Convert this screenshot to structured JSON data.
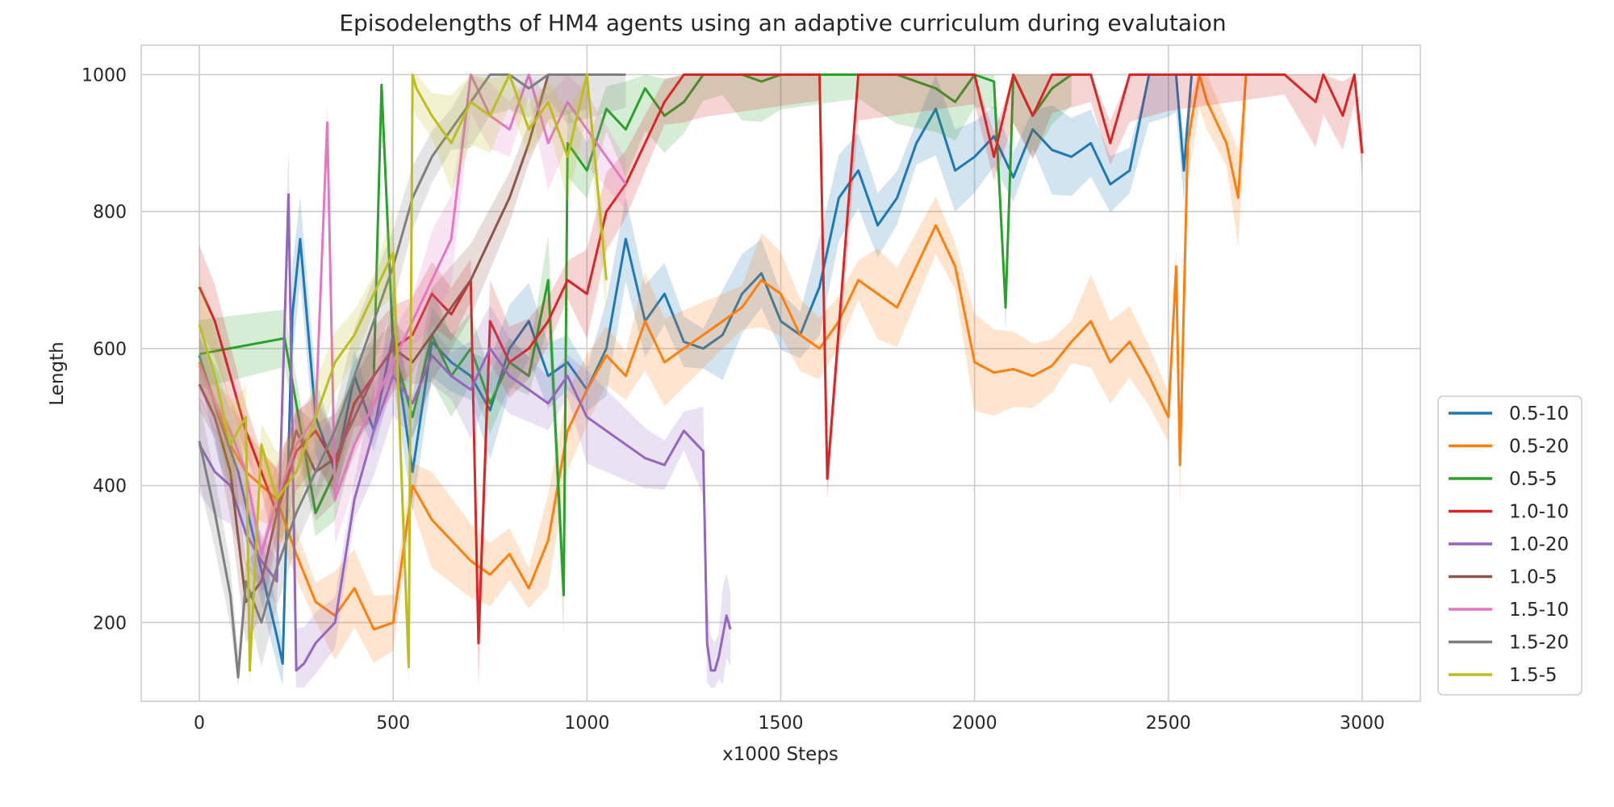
{
  "chart_data": {
    "type": "line",
    "title": "Episodelengths of HM4 agents using an adaptive curriculum during evalutaion",
    "xlabel": "x1000 Steps",
    "ylabel": "Length",
    "xlim": [
      -150,
      3150
    ],
    "ylim": [
      85,
      1043
    ],
    "xticks": [
      0,
      500,
      1000,
      1500,
      2000,
      2500,
      3000
    ],
    "yticks": [
      200,
      400,
      600,
      800,
      1000
    ],
    "grid": true,
    "legend_position": "lower-right-outside",
    "series": [
      {
        "name": "0.5-10",
        "color": "#1f77b4",
        "x": [
          0,
          50,
          100,
          150,
          200,
          215,
          240,
          260,
          300,
          350,
          400,
          450,
          500,
          550,
          600,
          650,
          700,
          750,
          800,
          850,
          900,
          950,
          1000,
          1050,
          1100,
          1150,
          1200,
          1250,
          1300,
          1350,
          1400,
          1450,
          1500,
          1550,
          1600,
          1650,
          1700,
          1750,
          1800,
          1850,
          1900,
          1950,
          2000,
          2050,
          2100,
          2150,
          2200,
          2250,
          2300,
          2350,
          2400,
          2450,
          2500,
          2520,
          2540,
          2560
        ],
        "y": [
          590,
          500,
          420,
          300,
          180,
          140,
          650,
          760,
          500,
          420,
          560,
          480,
          620,
          420,
          610,
          580,
          560,
          510,
          600,
          640,
          560,
          580,
          540,
          600,
          760,
          640,
          680,
          610,
          600,
          620,
          680,
          710,
          640,
          620,
          690,
          820,
          860,
          780,
          820,
          900,
          950,
          860,
          880,
          910,
          850,
          920,
          890,
          880,
          900,
          840,
          860,
          1000,
          1000,
          1000,
          860,
          1000
        ]
      },
      {
        "name": "0.5-20",
        "color": "#ff7f0e",
        "x": [
          0,
          40,
          80,
          120,
          160,
          200,
          250,
          300,
          350,
          400,
          450,
          500,
          550,
          600,
          650,
          700,
          750,
          800,
          850,
          900,
          950,
          1000,
          1050,
          1100,
          1150,
          1200,
          1250,
          1300,
          1350,
          1400,
          1450,
          1500,
          1550,
          1600,
          1650,
          1700,
          1750,
          1800,
          1850,
          1900,
          1950,
          2000,
          2050,
          2100,
          2150,
          2200,
          2250,
          2300,
          2350,
          2400,
          2450,
          2500,
          2520,
          2530,
          2550,
          2580,
          2600,
          2650,
          2680,
          2700
        ],
        "y": [
          580,
          520,
          460,
          420,
          400,
          380,
          300,
          230,
          210,
          250,
          190,
          200,
          400,
          350,
          320,
          290,
          270,
          300,
          250,
          320,
          480,
          540,
          590,
          560,
          640,
          580,
          600,
          620,
          640,
          660,
          700,
          680,
          620,
          600,
          640,
          700,
          680,
          660,
          720,
          780,
          720,
          580,
          565,
          570,
          560,
          575,
          610,
          640,
          580,
          610,
          560,
          500,
          720,
          430,
          900,
          1000,
          960,
          900,
          820,
          1000
        ]
      },
      {
        "name": "0.5-5",
        "color": "#2ca02c",
        "x": [
          0,
          220,
          300,
          350,
          400,
          450,
          470,
          500,
          550,
          600,
          650,
          700,
          750,
          800,
          850,
          900,
          940,
          950,
          1000,
          1050,
          1100,
          1150,
          1200,
          1250,
          1300,
          1350,
          1400,
          1450,
          1500,
          1600,
          1700,
          1800,
          1900,
          1950,
          2000,
          2050,
          2080,
          2100,
          2150,
          2200,
          2250
        ],
        "y": [
          592,
          615,
          360,
          420,
          520,
          560,
          985,
          600,
          500,
          620,
          560,
          600,
          520,
          580,
          560,
          700,
          240,
          900,
          860,
          950,
          920,
          980,
          940,
          960,
          1000,
          1000,
          1000,
          990,
          1000,
          1000,
          1000,
          1000,
          980,
          960,
          1000,
          990,
          660,
          1000,
          940,
          980,
          1000
        ]
      },
      {
        "name": "1.0-10",
        "color": "#d62728",
        "x": [
          0,
          40,
          80,
          120,
          160,
          200,
          250,
          300,
          350,
          400,
          450,
          500,
          550,
          600,
          650,
          700,
          720,
          750,
          800,
          850,
          900,
          950,
          1000,
          1050,
          1100,
          1150,
          1200,
          1250,
          1300,
          1400,
          1500,
          1600,
          1620,
          1700,
          1800,
          1900,
          2000,
          2050,
          2100,
          2150,
          2200,
          2250,
          2300,
          2350,
          2400,
          2450,
          2500,
          2600,
          2700,
          2800,
          2880,
          2900,
          2950,
          2980,
          3000
        ],
        "y": [
          690,
          640,
          560,
          480,
          420,
          360,
          450,
          480,
          430,
          520,
          560,
          600,
          620,
          680,
          650,
          700,
          170,
          640,
          580,
          600,
          640,
          700,
          680,
          800,
          840,
          900,
          960,
          1000,
          1000,
          1000,
          1000,
          1000,
          410,
          1000,
          1000,
          1000,
          1000,
          880,
          1000,
          940,
          1000,
          1000,
          1000,
          900,
          1000,
          1000,
          1000,
          1000,
          1000,
          1000,
          960,
          1000,
          940,
          1000,
          885
        ]
      },
      {
        "name": "1.0-20",
        "color": "#9467bd",
        "x": [
          0,
          40,
          80,
          120,
          160,
          200,
          230,
          250,
          270,
          300,
          350,
          400,
          450,
          500,
          550,
          600,
          650,
          700,
          750,
          800,
          850,
          900,
          950,
          1000,
          1050,
          1100,
          1150,
          1200,
          1250,
          1300,
          1310,
          1320,
          1330,
          1340,
          1350,
          1360,
          1370
        ],
        "y": [
          460,
          420,
          400,
          330,
          290,
          260,
          825,
          130,
          140,
          170,
          200,
          380,
          480,
          560,
          520,
          590,
          560,
          540,
          600,
          560,
          540,
          520,
          560,
          500,
          480,
          460,
          440,
          430,
          480,
          450,
          170,
          130,
          130,
          150,
          180,
          210,
          190
        ]
      },
      {
        "name": "1.0-5",
        "color": "#8c564b",
        "x": [
          0,
          40,
          80,
          120,
          160,
          200,
          250,
          300,
          350,
          400,
          450,
          500,
          550,
          600,
          650,
          700,
          750,
          800,
          850,
          900,
          950,
          1000
        ],
        "y": [
          548,
          500,
          420,
          230,
          260,
          360,
          480,
          420,
          440,
          500,
          560,
          600,
          580,
          620,
          660,
          700,
          760,
          820,
          900,
          1000,
          1000,
          1000
        ]
      },
      {
        "name": "1.5-10",
        "color": "#e377c2",
        "x": [
          0,
          40,
          80,
          120,
          160,
          200,
          250,
          300,
          330,
          350,
          400,
          450,
          500,
          550,
          600,
          650,
          700,
          750,
          800,
          850,
          900,
          950,
          1000,
          1050,
          1100
        ],
        "y": [
          575,
          520,
          480,
          420,
          300,
          380,
          460,
          500,
          930,
          380,
          460,
          520,
          580,
          640,
          700,
          760,
          1000,
          940,
          920,
          1000,
          900,
          960,
          920,
          880,
          840
        ]
      },
      {
        "name": "1.5-20",
        "color": "#7f7f7f",
        "x": [
          0,
          40,
          80,
          100,
          120,
          160,
          200,
          250,
          300,
          350,
          400,
          450,
          500,
          550,
          600,
          650,
          700,
          750,
          800,
          850,
          900,
          950,
          1000,
          1050,
          1100
        ],
        "y": [
          465,
          360,
          240,
          120,
          260,
          200,
          280,
          360,
          420,
          480,
          560,
          640,
          720,
          820,
          880,
          920,
          960,
          1000,
          1000,
          980,
          1000,
          1000,
          1000,
          1000,
          1000
        ]
      },
      {
        "name": "1.5-5",
        "color": "#bcbd22",
        "x": [
          0,
          40,
          80,
          120,
          130,
          160,
          200,
          250,
          300,
          350,
          400,
          450,
          500,
          540,
          550,
          560,
          600,
          650,
          700,
          750,
          800,
          850,
          900,
          950,
          1000,
          1050
        ],
        "y": [
          635,
          560,
          460,
          500,
          130,
          460,
          380,
          420,
          500,
          580,
          620,
          680,
          740,
          135,
          1000,
          980,
          940,
          900,
          960,
          940,
          1000,
          920,
          960,
          880,
          1000,
          700
        ]
      }
    ]
  }
}
